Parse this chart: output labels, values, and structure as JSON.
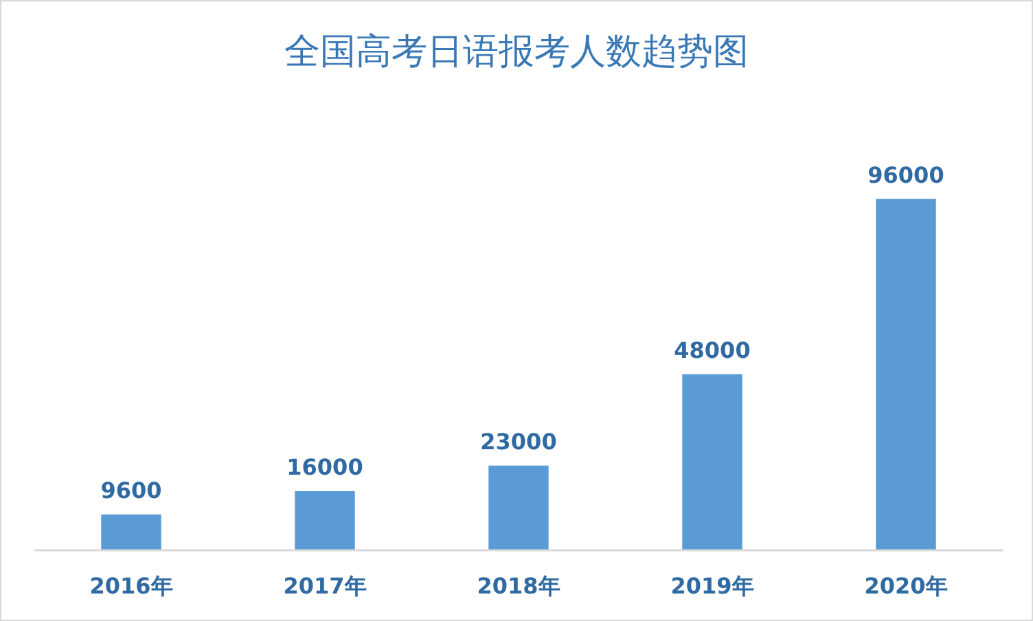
{
  "chart_data": {
    "type": "bar",
    "title": "全国高考日语报考人数趋势图",
    "categories": [
      "2016年",
      "2017年",
      "2018年",
      "2019年",
      "2020年"
    ],
    "values": [
      9600,
      16000,
      23000,
      48000,
      96000
    ],
    "color": "#5b9bd5",
    "data_labels": true
  }
}
